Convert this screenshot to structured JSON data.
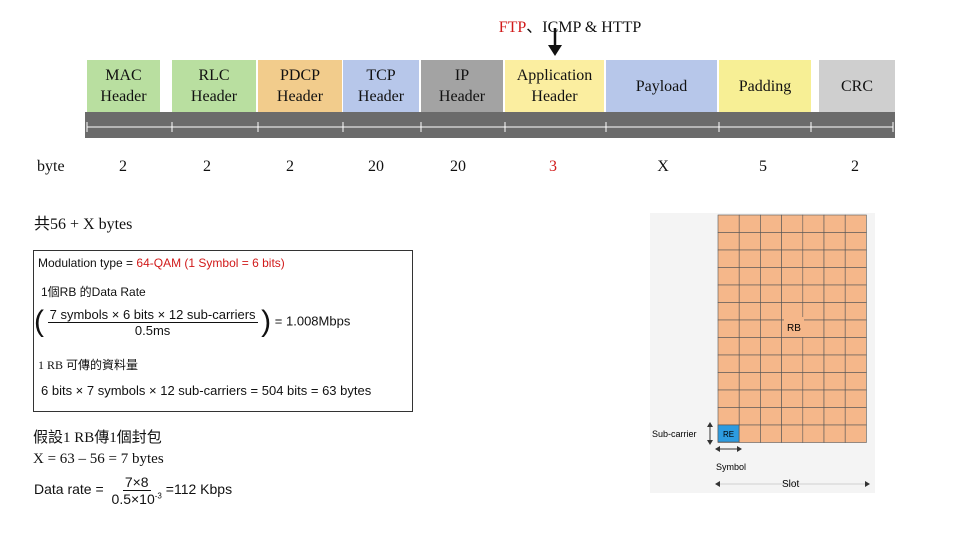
{
  "title": {
    "prefix": "FTP",
    "suffix": "、ICMP & HTTP",
    "prefix_color": "#d11a1a"
  },
  "headers": [
    {
      "id": "mac",
      "line1": "MAC",
      "line2": "Header",
      "color": "#b9dfa0",
      "bytes": "2",
      "bytes_color": "#111111"
    },
    {
      "id": "rlc",
      "line1": "RLC",
      "line2": "Header",
      "color": "#b9dfa0",
      "bytes": "2",
      "bytes_color": "#111111"
    },
    {
      "id": "pdcp",
      "line1": "PDCP",
      "line2": "Header",
      "color": "#f2cc8c",
      "bytes": "2",
      "bytes_color": "#111111"
    },
    {
      "id": "tcp",
      "line1": "TCP",
      "line2": "Header",
      "color": "#b7c7ea",
      "bytes": "20",
      "bytes_color": "#111111"
    },
    {
      "id": "ip",
      "line1": "IP",
      "line2": "Header",
      "color": "#a3a3a3",
      "bytes": "20",
      "bytes_color": "#111111"
    },
    {
      "id": "application",
      "line1": "Application",
      "line2": "Header",
      "color": "#fbeea0",
      "bytes": "3",
      "bytes_color": "#d11a1a"
    },
    {
      "id": "payload",
      "line1": "Payload",
      "line2": "",
      "color": "#b7c7ea",
      "bytes": "X",
      "bytes_color": "#111111"
    },
    {
      "id": "padding",
      "line1": "Padding",
      "line2": "",
      "color": "#f7ef95",
      "bytes": "5",
      "bytes_color": "#111111"
    },
    {
      "id": "crc",
      "line1": "CRC",
      "line2": "",
      "color": "#cfcfcf",
      "bytes": "2",
      "bytes_color": "#111111"
    }
  ],
  "byte_row_label": "byte",
  "total": "共56 + X bytes",
  "modulation": {
    "prefix": "Modulation type = ",
    "value": "64-QAM (1 Symbol = 6 bits)"
  },
  "rb_rate": {
    "label": "1個RB 的Data Rate",
    "numerator": "7 symbols × 6 bits × 12 sub-carriers",
    "denominator": "0.5ms",
    "result": "= 1.008Mbps"
  },
  "rb_amount": {
    "label": "1 RB 可傳的資料量",
    "formula": "6 bits × 7 symbols × 12 sub-carriers = 504 bits = 63 bytes"
  },
  "assumption": {
    "line1": "假設1 RB傳1個封包",
    "line2": "X = 63 – 56 = 7 bytes"
  },
  "data_rate": {
    "label": "Data rate =",
    "numerator": "7×8",
    "denominator": "0.5×10",
    "exponent": "-3",
    "result": "=112 Kbps"
  },
  "rb_grid": {
    "rb_label": "RB",
    "re_label": "RE",
    "subcarrier_label": "Sub-carrier",
    "symbol_label": "Symbol",
    "slot_label": "Slot",
    "cell_color": "#f5b78a",
    "re_color": "#2d9be0"
  }
}
